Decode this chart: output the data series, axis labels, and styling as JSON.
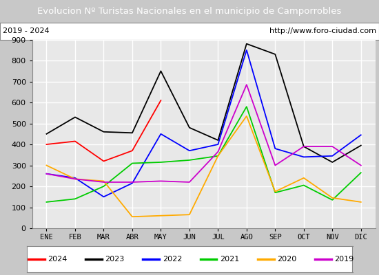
{
  "title": "Evolucion Nº Turistas Nacionales en el municipio de Camporrobles",
  "subtitle_left": "2019 - 2024",
  "subtitle_right": "http://www.foro-ciudad.com",
  "xlabel_months": [
    "ENE",
    "FEB",
    "MAR",
    "ABR",
    "MAY",
    "JUN",
    "JUL",
    "AGO",
    "SEP",
    "OCT",
    "NOV",
    "DIC"
  ],
  "ylim": [
    0,
    900
  ],
  "yticks": [
    0,
    100,
    200,
    300,
    400,
    500,
    600,
    700,
    800,
    900
  ],
  "series": {
    "2024": {
      "color": "#ff0000",
      "values": [
        400,
        415,
        320,
        370,
        610,
        null,
        null,
        null,
        null,
        null,
        null,
        null
      ]
    },
    "2023": {
      "color": "#000000",
      "values": [
        450,
        530,
        460,
        455,
        750,
        480,
        420,
        880,
        830,
        390,
        315,
        395
      ]
    },
    "2022": {
      "color": "#0000ff",
      "values": [
        260,
        240,
        150,
        215,
        450,
        370,
        400,
        850,
        380,
        340,
        345,
        445
      ]
    },
    "2021": {
      "color": "#00cc00",
      "values": [
        125,
        140,
        200,
        310,
        315,
        325,
        345,
        580,
        170,
        205,
        135,
        265
      ]
    },
    "2020": {
      "color": "#ffaa00",
      "values": [
        300,
        235,
        225,
        55,
        60,
        65,
        345,
        535,
        175,
        240,
        145,
        125
      ]
    },
    "2019": {
      "color": "#cc00cc",
      "values": [
        260,
        235,
        220,
        220,
        225,
        220,
        365,
        685,
        300,
        390,
        390,
        300
      ]
    }
  },
  "title_bg_color": "#4a86c8",
  "title_text_color": "#ffffff",
  "subtitle_bg_color": "#ffffff",
  "plot_bg_color": "#e8e8e8",
  "grid_color": "#ffffff",
  "legend_order": [
    "2024",
    "2023",
    "2022",
    "2021",
    "2020",
    "2019"
  ],
  "fig_width": 5.5,
  "fig_height": 4.0,
  "dpi": 100
}
